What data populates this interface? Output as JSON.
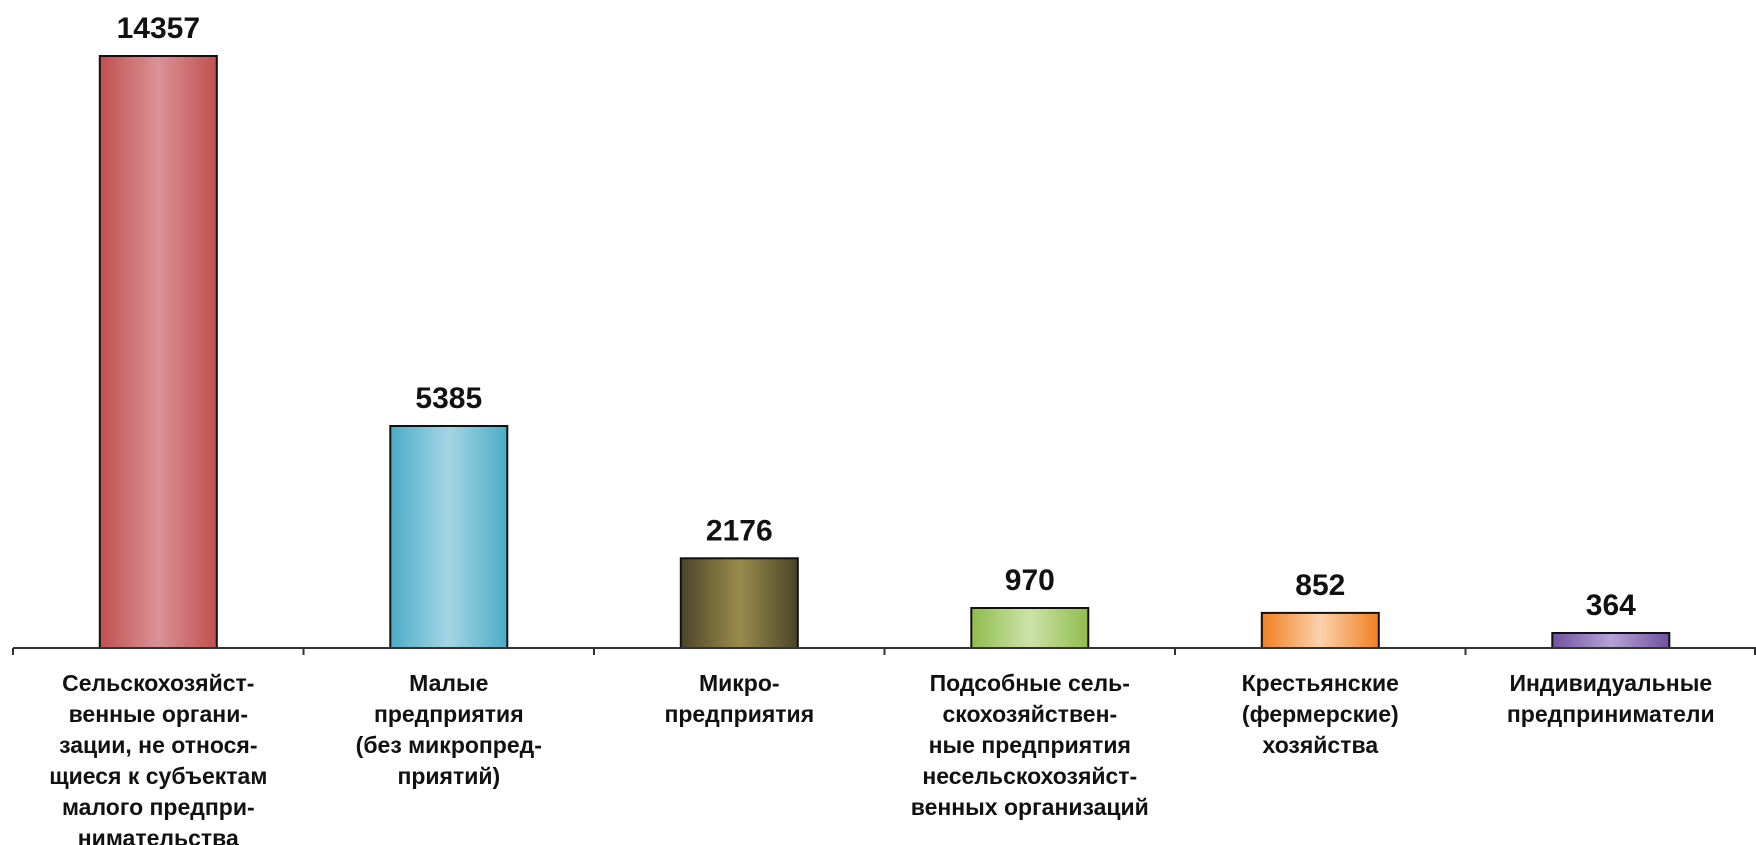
{
  "chart_data": {
    "type": "bar",
    "title": "",
    "xlabel": "",
    "ylabel": "",
    "ylim": [
      0,
      14357
    ],
    "grid": false,
    "legend": "none",
    "categories": [
      "Сельскохозяйст-\nвенные органи-\nзации, не относя-\nщиеся к субъектам\nмалого предпри-\nнимательства",
      "Малые\nпредприятия\n(без микропред-\nприятий)",
      "Микро-\nпредприятия",
      "Подсобные сель-\nскохозяйствен-\nные предприятия\nнесельскохозяйст-\nвенных организаций",
      "Крестьянские\n(фермерские)\nхозяйства",
      "Индивидуальные\nпредприниматели"
    ],
    "values": [
      14357,
      5385,
      2176,
      970,
      852,
      364
    ],
    "data_labels": [
      "14357",
      "5385",
      "2176",
      "970",
      "852",
      "364"
    ],
    "colors": [
      {
        "edge": "#c0504d",
        "mid": "#da9298"
      },
      {
        "edge": "#4aacc6",
        "mid": "#a5d5e5"
      },
      {
        "edge": "#4a4529",
        "mid": "#9a8b4c"
      },
      {
        "edge": "#8fbc4e",
        "mid": "#cde3a9"
      },
      {
        "edge": "#f07f22",
        "mid": "#fbd2ac"
      },
      {
        "edge": "#7051a0",
        "mid": "#b6a3d6"
      }
    ]
  }
}
